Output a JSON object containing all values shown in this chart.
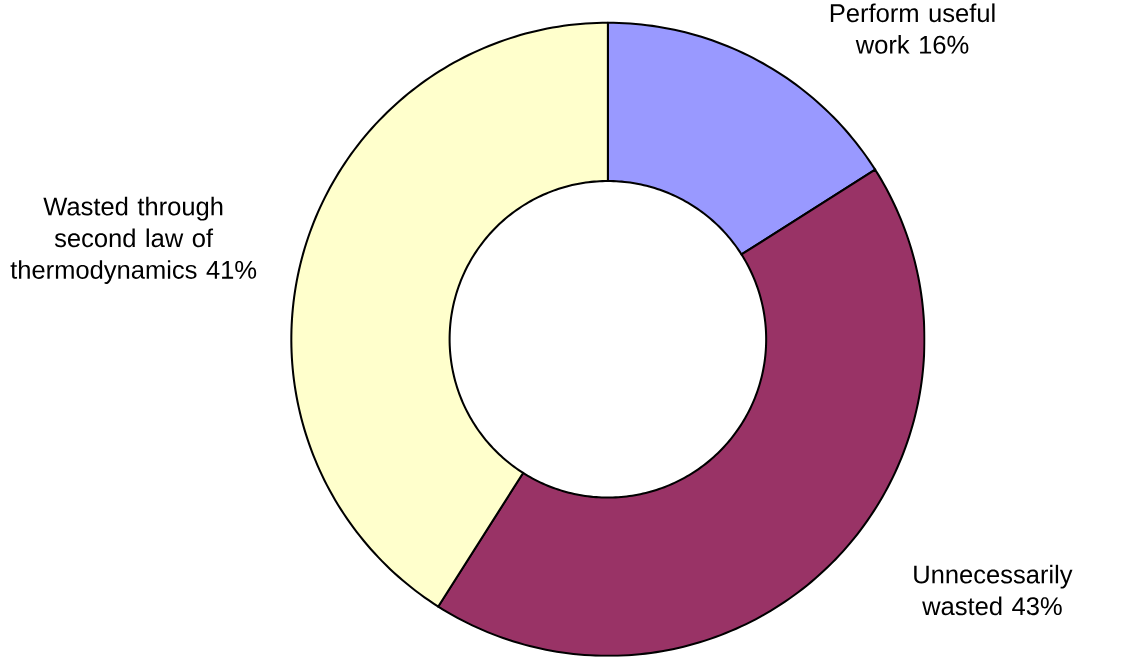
{
  "chart_data": {
    "type": "donut",
    "categories": [
      "Perform useful work",
      "Unnecessarily wasted",
      "Wasted through second law of thermodynamics"
    ],
    "values": [
      16,
      43,
      41
    ],
    "value_labels": [
      "16%",
      "43%",
      "41%"
    ],
    "colors": [
      "#9999ff",
      "#993366",
      "#ffffcc"
    ]
  }
}
